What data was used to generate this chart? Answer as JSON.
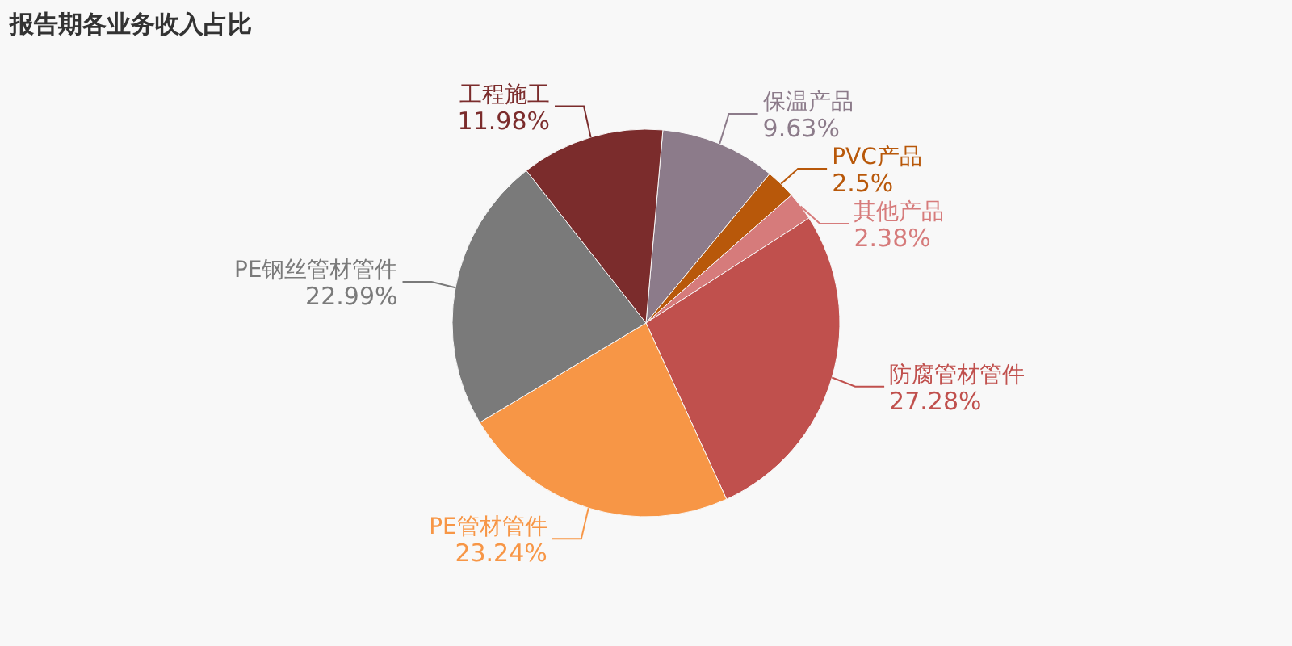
{
  "chart_data": {
    "type": "pie",
    "title": "报告期各业务收入占比",
    "categories": [
      "保温产品",
      "PVC产品",
      "其他产品",
      "防腐管材管件",
      "PE管材管件",
      "PE钢丝管材管件",
      "工程施工"
    ],
    "values": [
      9.63,
      2.5,
      2.38,
      27.28,
      23.24,
      22.99,
      11.98
    ],
    "value_labels": [
      "9.63%",
      "2.5%",
      "2.38%",
      "27.28%",
      "23.24%",
      "22.99%",
      "11.98%"
    ],
    "colors": [
      "#8c7b8a",
      "#b8580a",
      "#d67b7b",
      "#c0504d",
      "#f79646",
      "#7a7a7a",
      "#7b2c2c"
    ]
  }
}
